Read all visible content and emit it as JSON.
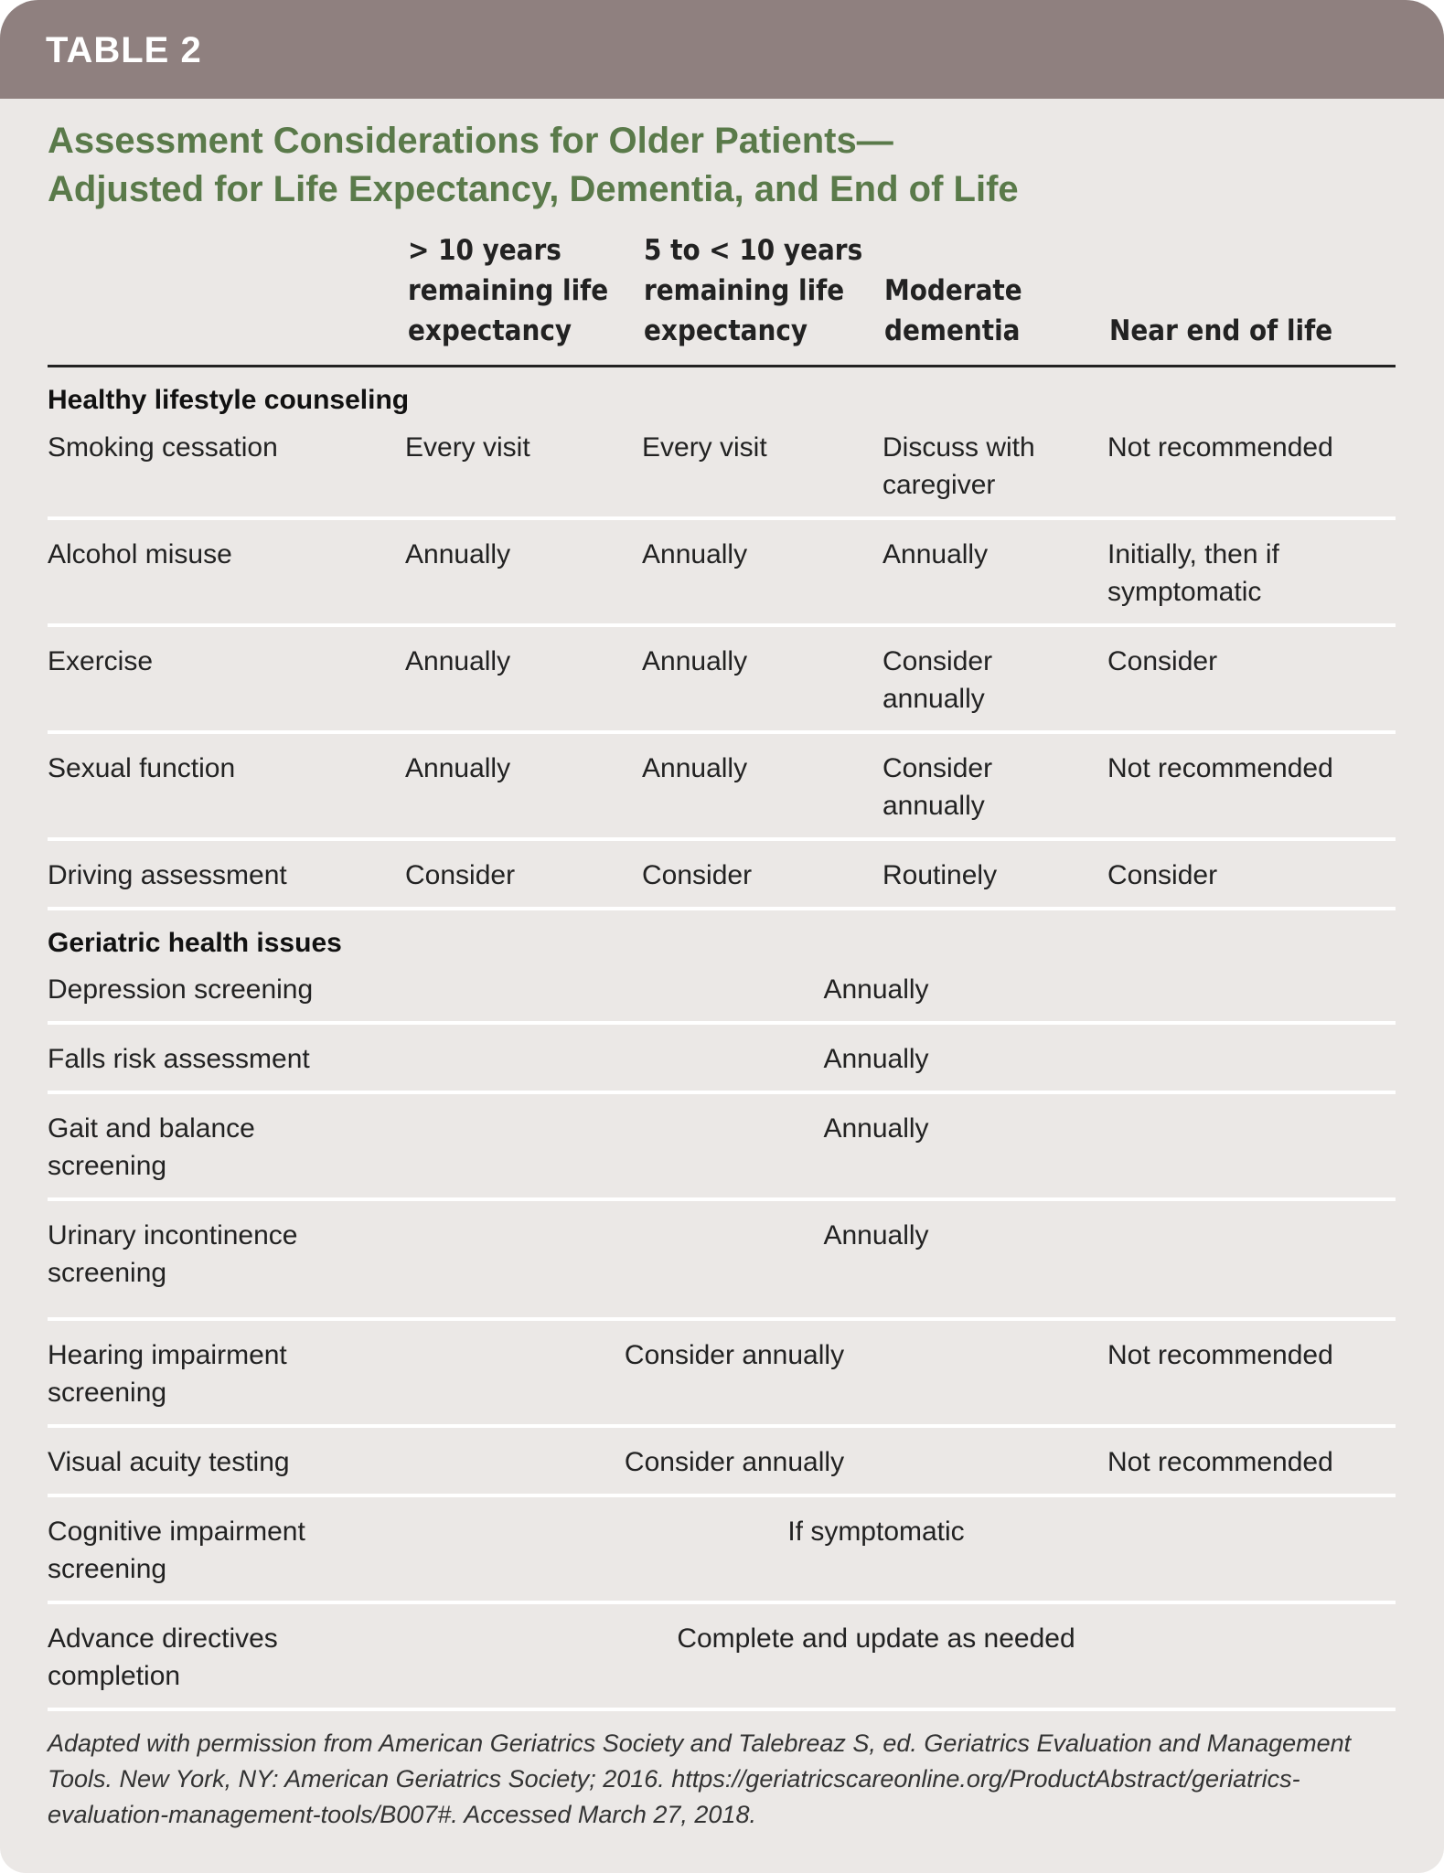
{
  "header": {
    "table_label": "TABLE 2"
  },
  "title": {
    "line1": "Assessment Considerations for Older Patients—",
    "line2": "Adjusted for Life Expectancy, Dementia, and End of Life"
  },
  "columns": [
    {
      "line1": "> 10 years",
      "line2": "remaining life",
      "line3": "expectancy"
    },
    {
      "line1": "5 to < 10 years",
      "line2": "remaining life",
      "line3": "expectancy"
    },
    {
      "line1": "Moderate",
      "line2": "dementia"
    },
    {
      "line1": "Near end of life"
    }
  ],
  "sections": {
    "lifestyle": {
      "heading": "Healthy lifestyle counseling",
      "rows": [
        {
          "label": "Smoking cessation",
          "c1": "Every visit",
          "c2": "Every visit",
          "c3": "Discuss with caregiver",
          "c4": "Not recommended"
        },
        {
          "label": "Alcohol misuse",
          "c1": "Annually",
          "c2": "Annually",
          "c3": "Annually",
          "c4": "Initially, then if symptomatic"
        },
        {
          "label": "Exercise",
          "c1": "Annually",
          "c2": "Annually",
          "c3": "Consider annually",
          "c4": "Consider"
        },
        {
          "label": "Sexual function",
          "c1": "Annually",
          "c2": "Annually",
          "c3": "Consider annually",
          "c4": "Not recommended"
        },
        {
          "label": "Driving assessment",
          "c1": "Consider",
          "c2": "Consider",
          "c3": "Routinely",
          "c4": "Consider"
        }
      ]
    },
    "geriatric": {
      "heading": "Geriatric health issues",
      "rows": [
        {
          "label": "Depression screening",
          "value": "Annually"
        },
        {
          "label": "Falls risk assessment",
          "value": "Annually"
        },
        {
          "label": "Gait and balance screening",
          "value": "Annually"
        },
        {
          "label": "Urinary incontinence screening",
          "value": "Annually"
        },
        {
          "label": "Hearing impairment screening",
          "value": "Consider annually",
          "c4": "Not recommended"
        },
        {
          "label": "Visual acuity testing",
          "value": "Consider annually",
          "c4": "Not recommended"
        },
        {
          "label": "Cognitive impairment screening",
          "value": "If symptomatic"
        },
        {
          "label": "Advance directives completion",
          "value": "Complete and update as needed"
        }
      ]
    }
  },
  "footnote": "Adapted with permission from American Geriatrics Society and Talebreaz S, ed. Geriatrics Evaluation and Management Tools. New York, NY: American Geriatrics Society; 2016. https://geriatricscareonline.org/ProductAbstract/geriatrics-evaluation-management-tools/B007#. Accessed March 27, 2018."
}
